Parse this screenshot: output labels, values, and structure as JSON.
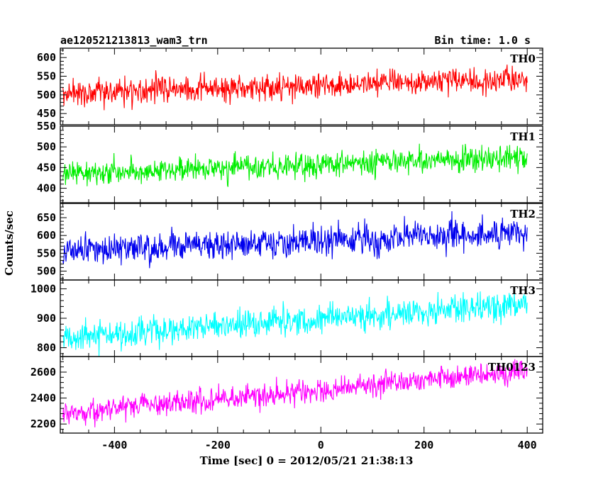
{
  "chart_data": {
    "type": "line",
    "title_left": "ae120521213813_wam3_trn",
    "title_right": "Bin time: 1.0 s",
    "xlabel": "Time [sec] 0 = 2012/05/21 21:38:13",
    "ylabel": "Counts/sec",
    "xlim": [
      -505,
      430
    ],
    "x_ticks": [
      -400,
      -200,
      0,
      200,
      400
    ],
    "x_range": [
      -500,
      400
    ],
    "bin_seconds": 1.0,
    "panels": [
      {
        "name": "TH0",
        "color": "#ff0000",
        "ylim": [
          420,
          625
        ],
        "y_ticks": [
          450,
          500,
          550,
          600
        ],
        "trend_start": 505,
        "trend_end": 540,
        "noise": 32
      },
      {
        "name": "TH1",
        "color": "#00ee00",
        "ylim": [
          365,
          550
        ],
        "y_ticks": [
          400,
          450,
          500,
          550
        ],
        "trend_start": 435,
        "trend_end": 475,
        "noise": 28
      },
      {
        "name": "TH2",
        "color": "#0000ee",
        "ylim": [
          475,
          690
        ],
        "y_ticks": [
          500,
          550,
          600,
          650
        ],
        "trend_start": 555,
        "trend_end": 610,
        "noise": 38
      },
      {
        "name": "TH3",
        "color": "#00ffff",
        "ylim": [
          770,
          1030
        ],
        "y_ticks": [
          800,
          900,
          1000
        ],
        "trend_start": 830,
        "trend_end": 950,
        "noise": 45
      },
      {
        "name": "TH0123",
        "color": "#ff00ff",
        "ylim": [
          2130,
          2720
        ],
        "y_ticks": [
          2200,
          2400,
          2600
        ],
        "trend_start": 2280,
        "trend_end": 2610,
        "noise": 85
      }
    ]
  }
}
